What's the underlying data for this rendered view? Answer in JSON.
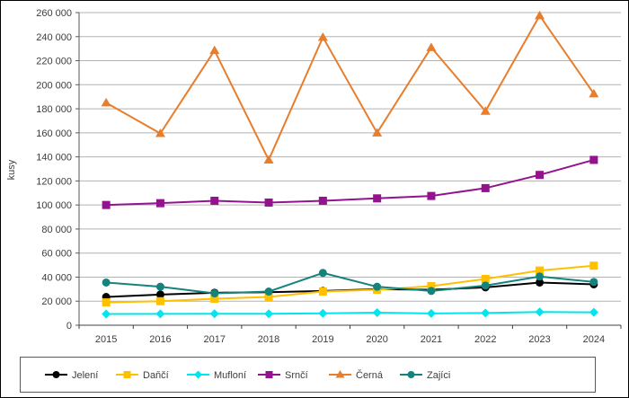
{
  "page": {
    "background": "#ffffff",
    "frame_border": "#000000"
  },
  "chart_data": {
    "type": "line",
    "title": "",
    "xlabel": "",
    "ylabel": "kusy",
    "categories": [
      "2015",
      "2016",
      "2017",
      "2018",
      "2019",
      "2020",
      "2021",
      "2022",
      "2023",
      "2024"
    ],
    "ylim": [
      0,
      260000
    ],
    "ytick_step": 20000,
    "ytick_labels": [
      "0",
      "20 000",
      "40 000",
      "60 000",
      "80 000",
      "100 000",
      "120 000",
      "140 000",
      "160 000",
      "180 000",
      "200 000",
      "220 000",
      "240 000",
      "260 000"
    ],
    "grid": true,
    "legend_position": "bottom",
    "colors": {
      "grid": "#b3b3b3",
      "axis": "#595959",
      "text": "#3d3d3d",
      "legend_border": "#595959",
      "plot_bg": "#ffffff"
    },
    "series": [
      {
        "name": "Jelení",
        "color": "#000000",
        "marker": "circle",
        "values": [
          23500,
          25500,
          27000,
          27500,
          28500,
          30000,
          29500,
          31500,
          35500,
          34000
        ]
      },
      {
        "name": "Daňčí",
        "color": "#ffc000",
        "marker": "square",
        "values": [
          19000,
          20000,
          22000,
          23500,
          28000,
          29500,
          32500,
          38500,
          45500,
          49500
        ]
      },
      {
        "name": "Mufloní",
        "color": "#00e5ee",
        "marker": "diamond",
        "values": [
          9300,
          9400,
          9500,
          9500,
          9900,
          10500,
          9800,
          10200,
          11000,
          10700
        ]
      },
      {
        "name": "Srnčí",
        "color": "#93138e",
        "marker": "square",
        "values": [
          100000,
          101500,
          103500,
          102000,
          103500,
          105500,
          107500,
          114000,
          125000,
          137500
        ]
      },
      {
        "name": "Černá",
        "color": "#e87d2c",
        "marker": "triangle",
        "values": [
          185000,
          159500,
          228500,
          137500,
          239500,
          160000,
          231000,
          178000,
          257500,
          192500
        ]
      },
      {
        "name": "Zajíci",
        "color": "#13837b",
        "marker": "circle",
        "values": [
          35500,
          32000,
          26500,
          28000,
          43500,
          32000,
          28500,
          33000,
          40500,
          36000
        ]
      }
    ]
  }
}
